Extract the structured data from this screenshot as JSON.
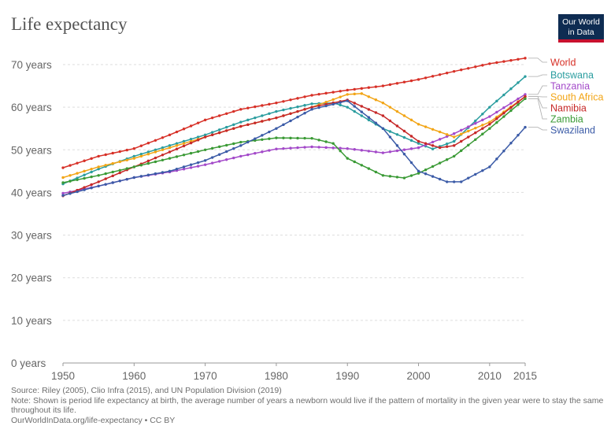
{
  "header": {
    "title": "Life expectancy",
    "logo_line1": "Our World",
    "logo_line2": "in Data"
  },
  "footer": {
    "source": "Source: Riley (2005), Clio Infra (2015), and UN Population Division (2019)",
    "note": "Note: Shown is period life expectancy at birth, the average number of years a newborn would live if the pattern of mortality in the given year were to stay the same throughout its life.",
    "url": "OurWorldInData.org/life-expectancy • CC BY"
  },
  "chart_data": {
    "type": "line",
    "ylim": [
      0,
      70
    ],
    "xlim": [
      1950,
      2015
    ],
    "yticks": [
      0,
      10,
      20,
      30,
      40,
      50,
      60,
      70
    ],
    "ytick_labels": [
      "0 years",
      "10 years",
      "20 years",
      "30 years",
      "40 years",
      "50 years",
      "60 years",
      "70 years"
    ],
    "xticks": [
      1950,
      1960,
      1970,
      1980,
      1990,
      2000,
      2010,
      2015
    ],
    "xtick_labels": [
      "1950",
      "1960",
      "1970",
      "1980",
      "1990",
      "2000",
      "2010",
      "2015"
    ],
    "grid": true,
    "legend": "right",
    "series": [
      {
        "name": "World",
        "color": "#d73027",
        "x": [
          1950,
          1955,
          1960,
          1965,
          1970,
          1975,
          1980,
          1985,
          1990,
          1995,
          2000,
          2005,
          2010,
          2015
        ],
        "values": [
          45.8,
          48.5,
          50.3,
          53.5,
          57.0,
          59.5,
          61.0,
          62.8,
          64.0,
          65.0,
          66.5,
          68.4,
          70.2,
          71.5
        ]
      },
      {
        "name": "Botswana",
        "color": "#2a9d9f",
        "x": [
          1950,
          1955,
          1960,
          1965,
          1970,
          1975,
          1980,
          1985,
          1988,
          1990,
          1995,
          2000,
          2002,
          2005,
          2010,
          2015
        ],
        "values": [
          42.0,
          45.5,
          48.5,
          51.0,
          53.5,
          56.5,
          59.0,
          60.8,
          61.0,
          60.0,
          55.0,
          51.5,
          50.2,
          52.0,
          60.0,
          67.2
        ]
      },
      {
        "name": "Tanzania",
        "color": "#a349c9",
        "x": [
          1950,
          1955,
          1960,
          1965,
          1970,
          1975,
          1980,
          1985,
          1990,
          1995,
          2000,
          2005,
          2010,
          2015
        ],
        "values": [
          39.8,
          41.5,
          43.5,
          44.8,
          46.5,
          48.5,
          50.2,
          50.7,
          50.3,
          49.3,
          50.5,
          53.8,
          57.8,
          63.0
        ]
      },
      {
        "name": "South Africa",
        "color": "#f2a516",
        "x": [
          1950,
          1955,
          1960,
          1965,
          1970,
          1975,
          1980,
          1985,
          1990,
          1992,
          1995,
          2000,
          2005,
          2010,
          2015
        ],
        "values": [
          43.5,
          46.0,
          48.0,
          50.5,
          53.0,
          55.5,
          57.5,
          60.0,
          63.0,
          63.2,
          61.0,
          56.0,
          53.0,
          56.5,
          62.5
        ]
      },
      {
        "name": "Namibia",
        "color": "#c62828",
        "x": [
          1950,
          1955,
          1960,
          1965,
          1970,
          1975,
          1980,
          1985,
          1990,
          1995,
          2000,
          2003,
          2005,
          2010,
          2015
        ],
        "values": [
          39.2,
          42.5,
          46.0,
          49.5,
          53.0,
          55.5,
          57.5,
          60.0,
          61.7,
          58.0,
          52.0,
          50.5,
          51.0,
          56.0,
          62.5
        ]
      },
      {
        "name": "Zambia",
        "color": "#3a9a35",
        "x": [
          1950,
          1955,
          1960,
          1965,
          1970,
          1975,
          1980,
          1985,
          1988,
          1990,
          1995,
          1998,
          2000,
          2005,
          2010,
          2015
        ],
        "values": [
          42.3,
          44.0,
          46.0,
          48.0,
          50.0,
          51.8,
          52.8,
          52.7,
          51.5,
          48.0,
          44.0,
          43.4,
          44.5,
          48.5,
          55.0,
          62.0
        ]
      },
      {
        "name": "Swaziland",
        "color": "#3b5ba7",
        "x": [
          1950,
          1955,
          1960,
          1965,
          1970,
          1975,
          1980,
          1985,
          1990,
          1995,
          2000,
          2004,
          2006,
          2010,
          2015
        ],
        "values": [
          39.3,
          41.5,
          43.5,
          45.0,
          47.5,
          51.0,
          55.0,
          59.5,
          61.5,
          55.0,
          45.0,
          42.5,
          42.5,
          46.0,
          55.3
        ]
      }
    ]
  }
}
